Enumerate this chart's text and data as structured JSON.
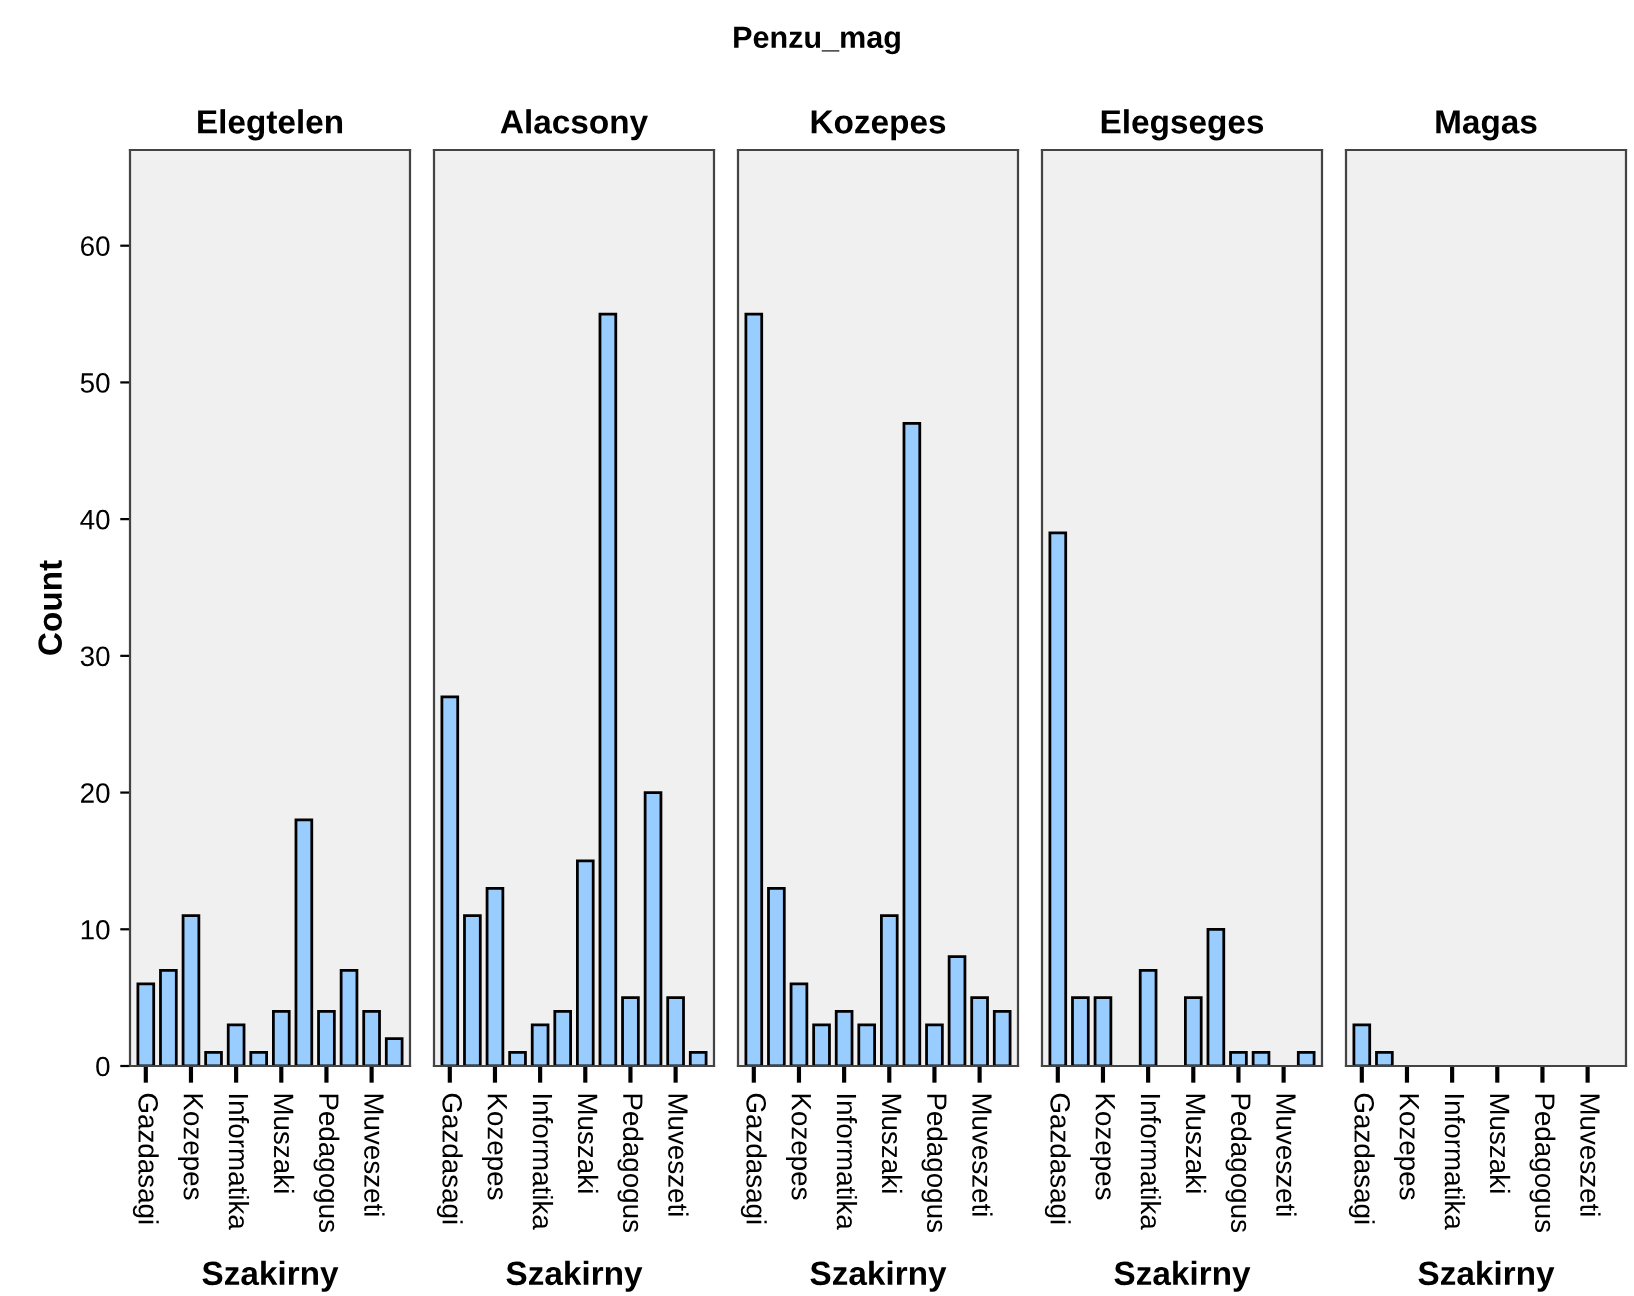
{
  "chart_data": [
    {
      "type": "bar",
      "title": "Elegtelen",
      "annotations": [
        "Penzu_mag"
      ],
      "xlabel": "Szakirny",
      "ylabel": "Count",
      "categories": [
        "Gazdasagi",
        null,
        "Kozepes",
        null,
        "Informatika",
        null,
        "Muszaki",
        null,
        "Pedagogus",
        null,
        "Muveszeti",
        null
      ],
      "values": [
        6,
        7,
        11,
        1,
        3,
        1,
        4,
        18,
        4,
        7,
        4,
        2
      ],
      "color": "#99ccff",
      "ylim": [
        0,
        67
      ],
      "yticks": [
        0,
        10,
        20,
        30,
        40,
        50,
        60
      ],
      "grid": false
    },
    {
      "type": "bar",
      "title": "Alacsony",
      "xlabel": "Szakirny",
      "categories": [
        "Gazdasagi",
        null,
        "Kozepes",
        null,
        "Informatika",
        null,
        "Muszaki",
        null,
        "Pedagogus",
        null,
        "Muveszeti",
        null
      ],
      "values": [
        27,
        11,
        13,
        1,
        3,
        4,
        15,
        55,
        5,
        20,
        5,
        1
      ],
      "color": "#99ccff",
      "ylim": [
        0,
        67
      ],
      "yticks": [
        0,
        10,
        20,
        30,
        40,
        50,
        60
      ],
      "tick_labels": "x",
      "grid": false
    },
    {
      "type": "bar",
      "title": "Kozepes",
      "xlabel": "Szakirny",
      "categories": [
        "Gazdasagi",
        null,
        "Kozepes",
        null,
        "Informatika",
        null,
        "Muszaki",
        null,
        "Pedagogus",
        null,
        "Muveszeti",
        null
      ],
      "values": [
        55,
        13,
        6,
        3,
        4,
        3,
        11,
        47,
        3,
        8,
        5,
        4
      ],
      "color": "#99ccff",
      "ylim": [
        0,
        67
      ],
      "yticks": [
        0,
        10,
        20,
        30,
        40,
        50,
        60
      ],
      "tick_labels": "x",
      "grid": false
    },
    {
      "type": "bar",
      "title": "Elegseges",
      "xlabel": "Szakirny",
      "categories": [
        "Gazdasagi",
        null,
        "Kozepes",
        null,
        "Informatika",
        null,
        "Muszaki",
        null,
        "Pedagogus",
        null,
        "Muveszeti",
        null
      ],
      "values": [
        39,
        5,
        5,
        0,
        7,
        0,
        5,
        10,
        1,
        1,
        0,
        1
      ],
      "color": "#99ccff",
      "ylim": [
        0,
        67
      ],
      "yticks": [
        0,
        10,
        20,
        30,
        40,
        50,
        60
      ],
      "tick_labels": "x",
      "grid": false
    },
    {
      "type": "bar",
      "title": "Magas",
      "xlabel": "Szakirny",
      "categories": [
        "Gazdasagi",
        null,
        "Kozepes",
        null,
        "Informatika",
        null,
        "Muszaki",
        null,
        "Pedagogus",
        null,
        "Muveszeti",
        null
      ],
      "values": [
        3,
        1,
        0,
        0,
        0,
        0,
        0,
        0,
        0,
        0,
        0,
        0
      ],
      "color": "#99ccff",
      "ylim": [
        0,
        67
      ],
      "yticks": [
        0,
        10,
        20,
        30,
        40,
        50,
        60
      ],
      "tick_labels": "x",
      "grid": false
    }
  ]
}
